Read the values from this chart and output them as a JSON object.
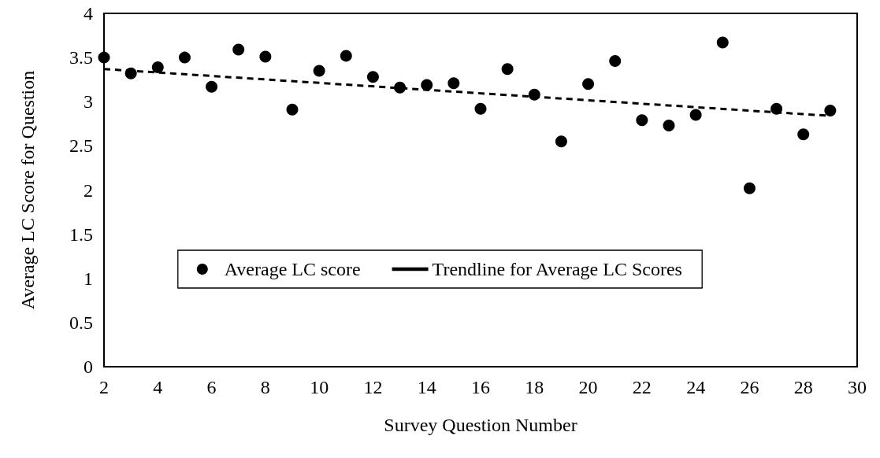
{
  "chart_data": {
    "type": "scatter",
    "xlabel": "Survey Question Number",
    "ylabel": "Average LC Score for Question",
    "x": [
      2,
      3,
      4,
      5,
      6,
      7,
      8,
      9,
      10,
      11,
      12,
      13,
      14,
      15,
      16,
      17,
      18,
      19,
      20,
      21,
      22,
      23,
      24,
      25,
      26,
      27,
      28,
      29
    ],
    "series": [
      {
        "name": "Average LC score",
        "color": "#000000",
        "marker": "circle",
        "values": [
          3.5,
          3.32,
          3.39,
          3.5,
          3.17,
          3.59,
          3.51,
          2.91,
          3.35,
          3.52,
          3.28,
          3.16,
          3.19,
          3.21,
          2.92,
          3.37,
          3.08,
          2.55,
          3.2,
          3.46,
          2.79,
          2.73,
          2.85,
          3.67,
          2.02,
          2.92,
          2.63,
          2.9
        ]
      },
      {
        "name": "Trendline for Average LC Scores",
        "type": "line",
        "color": "#000000",
        "line_style": "dashed",
        "marker": "none",
        "x": [
          2,
          29
        ],
        "values": [
          3.37,
          2.84
        ]
      }
    ],
    "xlim": [
      2,
      30
    ],
    "xticks": [
      2,
      4,
      6,
      8,
      10,
      12,
      14,
      16,
      18,
      20,
      22,
      24,
      26,
      28,
      30
    ],
    "ylim": [
      0,
      4
    ],
    "yticks": [
      0,
      0.5,
      1,
      1.5,
      2,
      2.5,
      3,
      3.5,
      4
    ],
    "grid": false,
    "legend": "center"
  }
}
